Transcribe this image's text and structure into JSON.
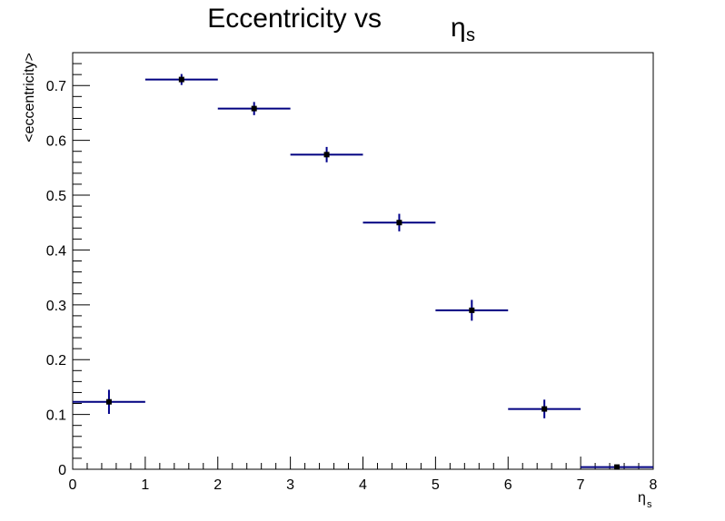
{
  "chart_data": {
    "type": "scatter",
    "title_main": "Eccentricity vs",
    "title_symbol": "η",
    "title_subscript": "s",
    "xlabel_symbol": "η",
    "xlabel_subscript": "s",
    "ylabel": "<eccentricity>",
    "xlim": [
      0,
      8
    ],
    "ylim": [
      0,
      0.76
    ],
    "x_ticks": [
      "0",
      "1",
      "2",
      "3",
      "4",
      "5",
      "6",
      "7",
      "8"
    ],
    "y_ticks": [
      "0",
      "0.1",
      "0.2",
      "0.3",
      "0.4",
      "0.5",
      "0.6",
      "0.7"
    ],
    "grid": false,
    "legend": "none",
    "colors": {
      "x_error": "#000080",
      "y_error": "#00008b",
      "marker": "#000000"
    },
    "points": [
      {
        "x": 0.5,
        "y": 0.123,
        "xerr": 0.5,
        "yerr": 0.022
      },
      {
        "x": 1.5,
        "y": 0.711,
        "xerr": 0.5,
        "yerr": 0.01
      },
      {
        "x": 2.5,
        "y": 0.658,
        "xerr": 0.5,
        "yerr": 0.012
      },
      {
        "x": 3.5,
        "y": 0.574,
        "xerr": 0.5,
        "yerr": 0.014
      },
      {
        "x": 4.5,
        "y": 0.45,
        "xerr": 0.5,
        "yerr": 0.016
      },
      {
        "x": 5.5,
        "y": 0.29,
        "xerr": 0.5,
        "yerr": 0.019
      },
      {
        "x": 6.5,
        "y": 0.11,
        "xerr": 0.5,
        "yerr": 0.017
      },
      {
        "x": 7.5,
        "y": 0.004,
        "xerr": 0.5,
        "yerr": 0.004
      }
    ]
  }
}
